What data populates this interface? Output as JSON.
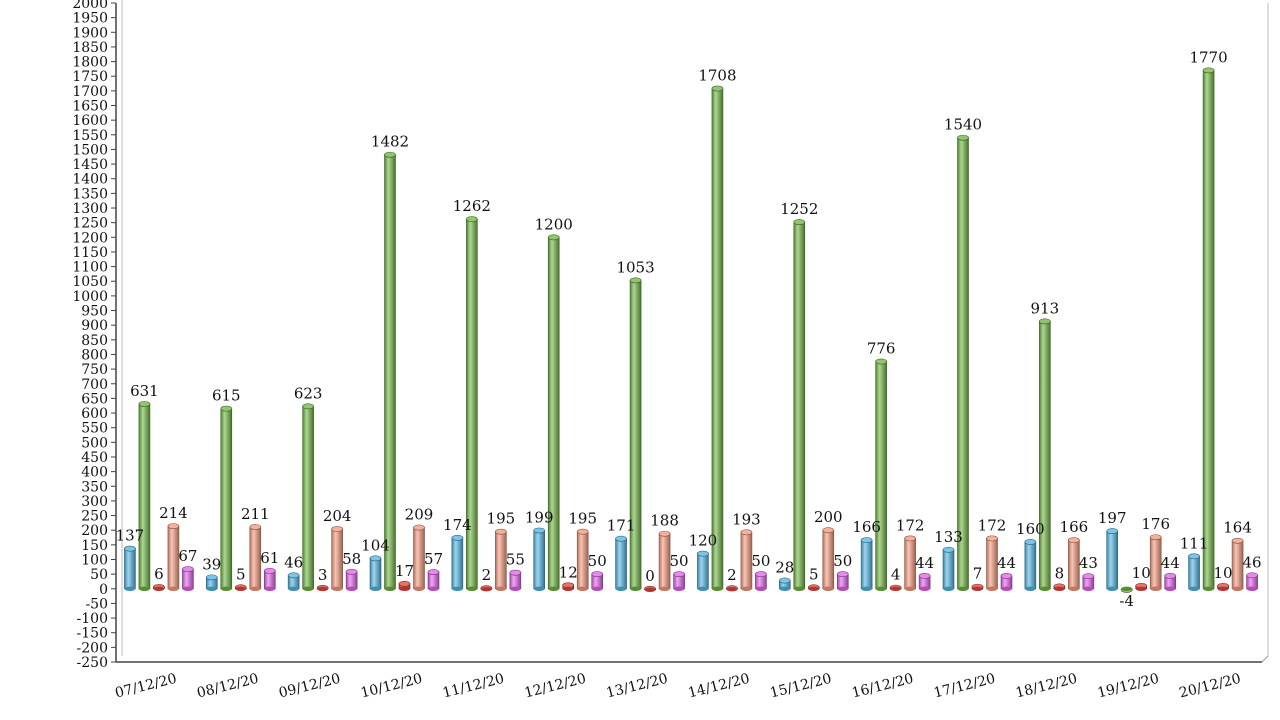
{
  "chart_data": {
    "type": "bar",
    "title": "",
    "xlabel": "",
    "ylabel": "",
    "ylim": [
      -250,
      2000
    ],
    "ytick_step": 50,
    "grid": false,
    "legend": "none",
    "categories": [
      "07/12/20",
      "08/12/20",
      "09/12/20",
      "10/12/20",
      "11/12/20",
      "12/12/20",
      "13/12/20",
      "14/12/20",
      "15/12/20",
      "16/12/20",
      "17/12/20",
      "18/12/20",
      "19/12/20",
      "20/12/20"
    ],
    "series": [
      {
        "color": "#4fb3e0",
        "values": [
          137,
          39,
          46,
          104,
          174,
          199,
          171,
          120,
          28,
          166,
          133,
          160,
          197,
          111
        ]
      },
      {
        "color": "#6cb33f",
        "values": [
          631,
          615,
          623,
          1482,
          1262,
          1200,
          1053,
          1708,
          1252,
          776,
          1540,
          913,
          -4,
          1770
        ]
      },
      {
        "color": "#e0443c",
        "values": [
          6,
          5,
          3,
          17,
          2,
          12,
          0,
          2,
          5,
          4,
          7,
          8,
          10,
          10
        ]
      },
      {
        "color": "#f2967a",
        "values": [
          214,
          211,
          204,
          209,
          195,
          195,
          188,
          193,
          200,
          172,
          172,
          166,
          176,
          164
        ]
      },
      {
        "color": "#e060e8",
        "values": [
          67,
          61,
          58,
          57,
          55,
          50,
          50,
          50,
          50,
          44,
          44,
          43,
          44,
          46
        ]
      }
    ]
  }
}
